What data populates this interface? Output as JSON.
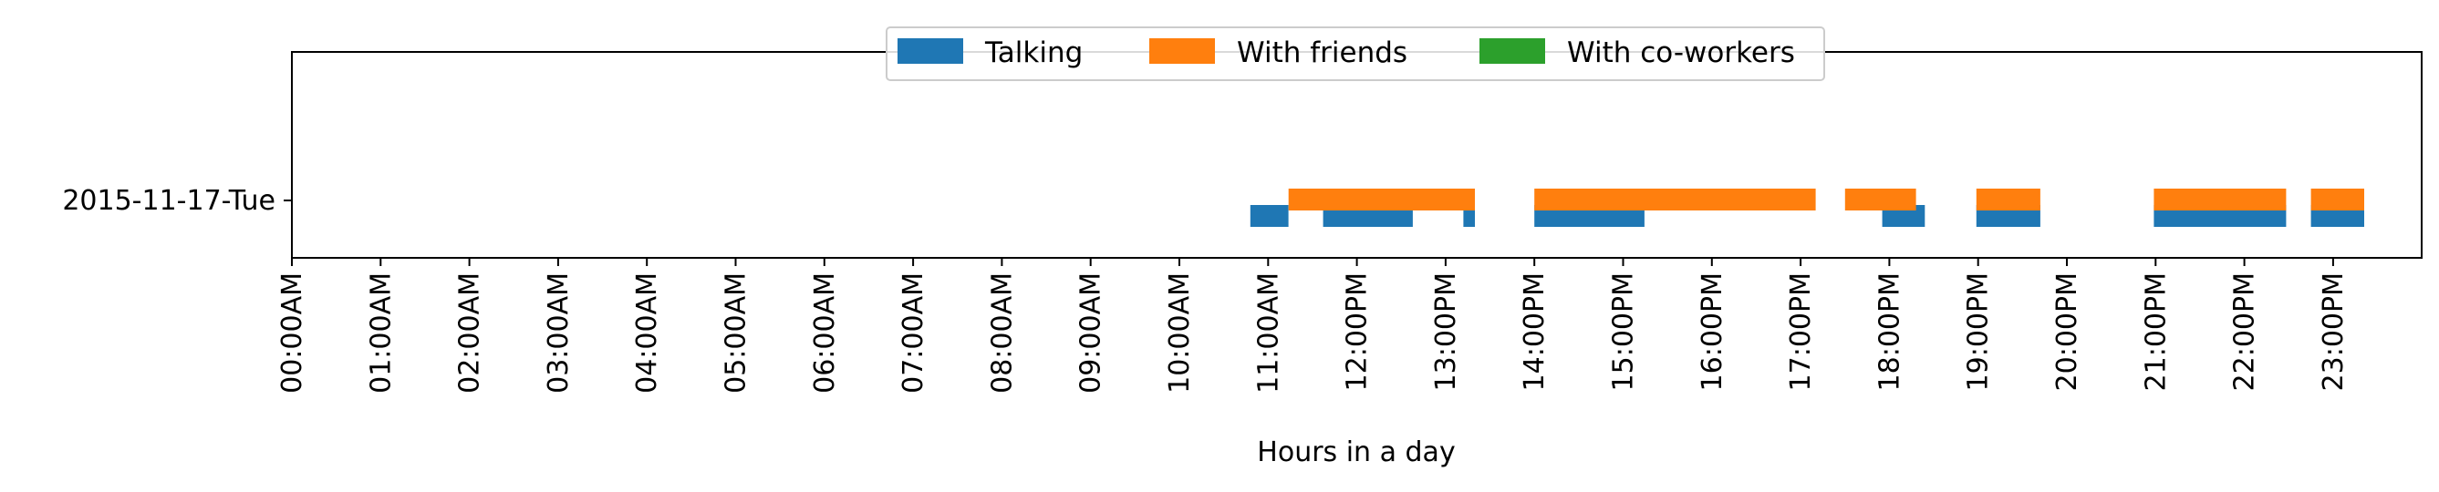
{
  "chart_data": {
    "type": "broken_barh",
    "title": "",
    "xlabel": "Hours in a day",
    "ylabel": "",
    "xlim": [
      0,
      24
    ],
    "x_ticks": [
      0,
      1,
      2,
      3,
      4,
      5,
      6,
      7,
      8,
      9,
      10,
      11,
      12,
      13,
      14,
      15,
      16,
      17,
      18,
      19,
      20,
      21,
      22,
      23
    ],
    "x_tick_labels": [
      "00:00AM",
      "01:00AM",
      "02:00AM",
      "03:00AM",
      "04:00AM",
      "05:00AM",
      "06:00AM",
      "07:00AM",
      "08:00AM",
      "09:00AM",
      "10:00AM",
      "11:00AM",
      "12:00PM",
      "13:00PM",
      "14:00PM",
      "15:00PM",
      "16:00PM",
      "17:00PM",
      "18:00PM",
      "19:00PM",
      "20:00PM",
      "21:00PM",
      "22:00PM",
      "23:00PM"
    ],
    "categories": [
      "2015-11-17-Tue"
    ],
    "legend_position": "top-center",
    "series": [
      {
        "name": "Talking",
        "color": "#1f77b4",
        "intervals": [
          [
            10.8,
            11.23
          ],
          [
            11.62,
            12.63
          ],
          [
            13.2,
            13.33
          ],
          [
            14.0,
            15.24
          ],
          [
            17.92,
            18.4
          ],
          [
            18.98,
            19.7
          ],
          [
            20.98,
            22.47
          ],
          [
            22.75,
            23.35
          ]
        ]
      },
      {
        "name": "With friends",
        "color": "#ff7f0e",
        "intervals": [
          [
            11.23,
            13.33
          ],
          [
            14.0,
            17.17
          ],
          [
            17.5,
            18.3
          ],
          [
            18.98,
            19.7
          ],
          [
            20.98,
            22.47
          ],
          [
            22.75,
            23.35
          ]
        ]
      },
      {
        "name": "With co-workers",
        "color": "#2ca02c",
        "intervals": []
      }
    ]
  }
}
